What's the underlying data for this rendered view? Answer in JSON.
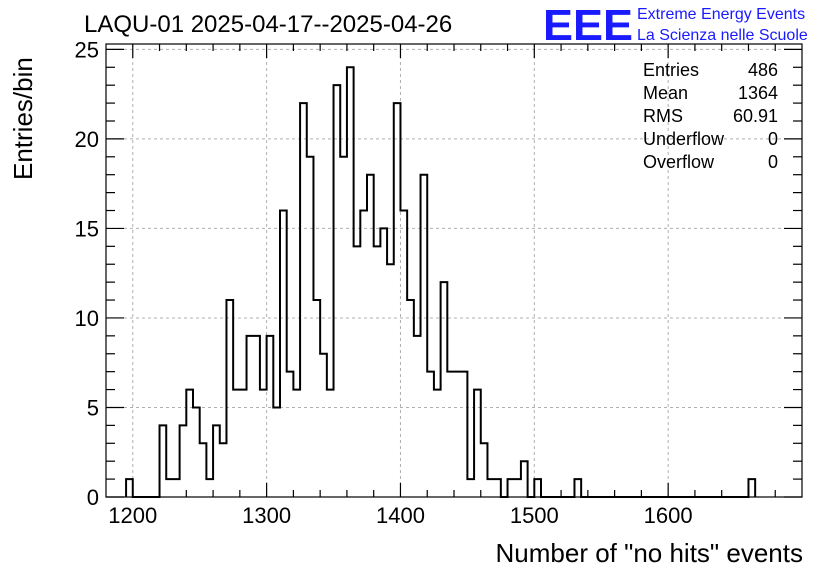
{
  "logo": {
    "mark": "EEE",
    "line1": "Extreme Energy Events",
    "line2": "La Scienza nelle Scuole",
    "color": "#1a1aff"
  },
  "stats": [
    {
      "label": "Entries",
      "value": "486"
    },
    {
      "label": "Mean",
      "value": "1364"
    },
    {
      "label": "RMS",
      "value": "60.91"
    },
    {
      "label": "Underflow",
      "value": "0"
    },
    {
      "label": "Overflow",
      "value": "0"
    }
  ],
  "chart_data": {
    "type": "histogram",
    "title": "LAQU-01 2025-04-17--2025-04-26",
    "xlabel": "Number of \"no hits\" events",
    "ylabel": "Entries/bin",
    "xlim": [
      1180,
      1700
    ],
    "ylim": [
      0,
      25.3
    ],
    "bin_width": 5,
    "x_ticks": [
      1200,
      1300,
      1400,
      1500,
      1600
    ],
    "y_ticks": [
      0,
      5,
      10,
      15,
      20,
      25
    ],
    "grid": true,
    "legend": "none",
    "bins": [
      {
        "x": 1195,
        "value": 1
      },
      {
        "x": 1200,
        "value": 0
      },
      {
        "x": 1205,
        "value": 0
      },
      {
        "x": 1210,
        "value": 0
      },
      {
        "x": 1215,
        "value": 0
      },
      {
        "x": 1220,
        "value": 4
      },
      {
        "x": 1225,
        "value": 1
      },
      {
        "x": 1230,
        "value": 1
      },
      {
        "x": 1235,
        "value": 4
      },
      {
        "x": 1240,
        "value": 6
      },
      {
        "x": 1245,
        "value": 5
      },
      {
        "x": 1250,
        "value": 3
      },
      {
        "x": 1255,
        "value": 1
      },
      {
        "x": 1260,
        "value": 4
      },
      {
        "x": 1265,
        "value": 3
      },
      {
        "x": 1270,
        "value": 11
      },
      {
        "x": 1275,
        "value": 6
      },
      {
        "x": 1280,
        "value": 6
      },
      {
        "x": 1285,
        "value": 9
      },
      {
        "x": 1290,
        "value": 9
      },
      {
        "x": 1295,
        "value": 6
      },
      {
        "x": 1300,
        "value": 9
      },
      {
        "x": 1305,
        "value": 5
      },
      {
        "x": 1310,
        "value": 16
      },
      {
        "x": 1315,
        "value": 7
      },
      {
        "x": 1320,
        "value": 6
      },
      {
        "x": 1325,
        "value": 22
      },
      {
        "x": 1330,
        "value": 19
      },
      {
        "x": 1335,
        "value": 11
      },
      {
        "x": 1340,
        "value": 8
      },
      {
        "x": 1345,
        "value": 6
      },
      {
        "x": 1350,
        "value": 23
      },
      {
        "x": 1355,
        "value": 19
      },
      {
        "x": 1360,
        "value": 24
      },
      {
        "x": 1365,
        "value": 14
      },
      {
        "x": 1370,
        "value": 16
      },
      {
        "x": 1375,
        "value": 18
      },
      {
        "x": 1380,
        "value": 14
      },
      {
        "x": 1385,
        "value": 15
      },
      {
        "x": 1390,
        "value": 13
      },
      {
        "x": 1395,
        "value": 22
      },
      {
        "x": 1400,
        "value": 16
      },
      {
        "x": 1405,
        "value": 11
      },
      {
        "x": 1410,
        "value": 9
      },
      {
        "x": 1415,
        "value": 18
      },
      {
        "x": 1420,
        "value": 7
      },
      {
        "x": 1425,
        "value": 6
      },
      {
        "x": 1430,
        "value": 12
      },
      {
        "x": 1435,
        "value": 7
      },
      {
        "x": 1440,
        "value": 7
      },
      {
        "x": 1445,
        "value": 7
      },
      {
        "x": 1450,
        "value": 1
      },
      {
        "x": 1455,
        "value": 6
      },
      {
        "x": 1460,
        "value": 3
      },
      {
        "x": 1465,
        "value": 1
      },
      {
        "x": 1470,
        "value": 1
      },
      {
        "x": 1475,
        "value": 0
      },
      {
        "x": 1480,
        "value": 1
      },
      {
        "x": 1485,
        "value": 1
      },
      {
        "x": 1490,
        "value": 2
      },
      {
        "x": 1495,
        "value": 0
      },
      {
        "x": 1500,
        "value": 1
      },
      {
        "x": 1505,
        "value": 0
      },
      {
        "x": 1510,
        "value": 0
      },
      {
        "x": 1515,
        "value": 0
      },
      {
        "x": 1520,
        "value": 0
      },
      {
        "x": 1525,
        "value": 0
      },
      {
        "x": 1530,
        "value": 1
      },
      {
        "x": 1535,
        "value": 0
      },
      {
        "x": 1540,
        "value": 0
      },
      {
        "x": 1545,
        "value": 0
      },
      {
        "x": 1550,
        "value": 0
      },
      {
        "x": 1555,
        "value": 0
      },
      {
        "x": 1560,
        "value": 0
      },
      {
        "x": 1565,
        "value": 0
      },
      {
        "x": 1570,
        "value": 0
      },
      {
        "x": 1575,
        "value": 0
      },
      {
        "x": 1580,
        "value": 0
      },
      {
        "x": 1585,
        "value": 0
      },
      {
        "x": 1590,
        "value": 0
      },
      {
        "x": 1595,
        "value": 0
      },
      {
        "x": 1600,
        "value": 0
      },
      {
        "x": 1605,
        "value": 0
      },
      {
        "x": 1610,
        "value": 0
      },
      {
        "x": 1615,
        "value": 0
      },
      {
        "x": 1620,
        "value": 0
      },
      {
        "x": 1625,
        "value": 0
      },
      {
        "x": 1630,
        "value": 0
      },
      {
        "x": 1635,
        "value": 0
      },
      {
        "x": 1640,
        "value": 0
      },
      {
        "x": 1645,
        "value": 0
      },
      {
        "x": 1650,
        "value": 0
      },
      {
        "x": 1655,
        "value": 0
      },
      {
        "x": 1660,
        "value": 1
      }
    ]
  }
}
